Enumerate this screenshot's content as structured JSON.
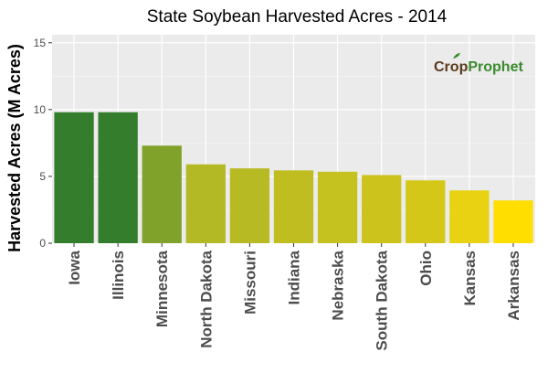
{
  "chart_data": {
    "type": "bar",
    "title": "State Soybean Harvested Acres - 2014",
    "xlabel": "",
    "ylabel": "Harvested Acres (M Acres)",
    "categories": [
      "Iowa",
      "Illinois",
      "Minnesota",
      "North Dakota",
      "Missouri",
      "Indiana",
      "Nebraska",
      "South Dakota",
      "Ohio",
      "Kansas",
      "Arkansas"
    ],
    "values": [
      9.8,
      9.8,
      7.3,
      5.9,
      5.6,
      5.45,
      5.35,
      5.1,
      4.7,
      3.95,
      3.2
    ],
    "colors": [
      "#337d2d",
      "#337d2d",
      "#81a22a",
      "#b3b825",
      "#b8ba23",
      "#c0bd20",
      "#c5c21f",
      "#ccc41c",
      "#d4c717",
      "#e8d212",
      "#ffde00"
    ],
    "ylim": [
      0,
      15
    ],
    "yticks": [
      0,
      5,
      10,
      15
    ],
    "grid": true,
    "legend": "none"
  },
  "logo": {
    "name_a": "Cr",
    "name_o": "o",
    "name_b": "p",
    "name_c": "Prophet",
    "colors": {
      "brown": "#5a3a1e",
      "green": "#3c8a2e"
    }
  },
  "theme": {
    "panel_bg": "#ebebeb",
    "grid_major": "#ffffff"
  }
}
